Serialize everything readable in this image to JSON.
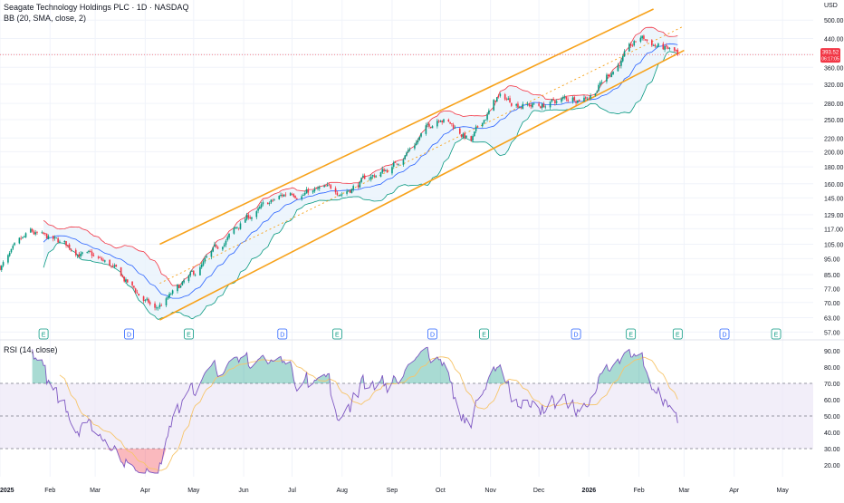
{
  "header": {
    "symbol_line": "Seagate Technology Holdings PLC · 1D · NASDAQ",
    "bb_legend": "BB (20, SMA, close, 2)",
    "rsi_legend": "RSI (14, close)",
    "currency": "USD"
  },
  "price_badge": {
    "price": "393.52",
    "countdown": "06:17:05",
    "color": "#f23645"
  },
  "colors": {
    "up": "#089981",
    "down": "#f23645",
    "channel": "#f7a21b",
    "bb_upper": "#f23645",
    "bb_lower": "#089981",
    "bb_basis": "#2962ff",
    "bb_fill": "#e8f2fb",
    "rsi_line": "#7e57c2",
    "rsi_ma": "#f7c56b",
    "rsi_band": "#ede7f6"
  },
  "chart_data": [
    {
      "type": "candlestick",
      "scale": "log",
      "ylim": [
        55,
        540
      ],
      "price_axis_ticks": [
        "500.00",
        "440.00",
        "393.52",
        "360.00",
        "320.00",
        "280.00",
        "250.00",
        "220.00",
        "200.00",
        "180.00",
        "160.00",
        "145.00",
        "129.00",
        "117.00",
        "105.00",
        "95.00",
        "85.00",
        "77.00",
        "70.00",
        "63.00",
        "57.00"
      ],
      "time_axis_labels": [
        "2025",
        "Feb",
        "Mar",
        "Apr",
        "May",
        "Jun",
        "Jul",
        "Aug",
        "Sep",
        "Oct",
        "Nov",
        "Dec",
        "2026",
        "Feb",
        "Mar",
        "Apr",
        "May"
      ],
      "price_path_monthly": [
        {
          "date": "2025-01-01",
          "close": 90
        },
        {
          "date": "2025-01-20",
          "close": 112
        },
        {
          "date": "2025-02-15",
          "close": 102
        },
        {
          "date": "2025-03-10",
          "close": 90
        },
        {
          "date": "2025-04-07",
          "close": 66
        },
        {
          "date": "2025-05-01",
          "close": 84
        },
        {
          "date": "2025-06-02",
          "close": 125
        },
        {
          "date": "2025-07-01",
          "close": 152
        },
        {
          "date": "2025-08-01",
          "close": 152
        },
        {
          "date": "2025-09-01",
          "close": 180
        },
        {
          "date": "2025-10-01",
          "close": 260
        },
        {
          "date": "2025-10-20",
          "close": 215
        },
        {
          "date": "2025-11-05",
          "close": 290
        },
        {
          "date": "2025-12-01",
          "close": 275
        },
        {
          "date": "2026-01-02",
          "close": 300
        },
        {
          "date": "2026-02-02",
          "close": 440
        },
        {
          "date": "2026-02-25",
          "close": 393.52
        }
      ],
      "last_price": 393.52,
      "indicators": [
        {
          "name": "BB (20, SMA, close, 2)",
          "length": 20,
          "mult": 2
        }
      ],
      "annotations": {
        "event_markers": [
          {
            "label": "E",
            "date": "2025-01-28"
          },
          {
            "label": "D",
            "date": "2025-03-22"
          },
          {
            "label": "E",
            "date": "2025-04-28"
          },
          {
            "label": "D",
            "date": "2025-06-25"
          },
          {
            "label": "E",
            "date": "2025-07-29"
          },
          {
            "label": "D",
            "date": "2025-09-26"
          },
          {
            "label": "E",
            "date": "2025-10-28"
          },
          {
            "label": "D",
            "date": "2025-12-24"
          },
          {
            "label": "E",
            "date": "2026-01-27"
          },
          {
            "label": "E",
            "date": "2026-02-25"
          },
          {
            "label": "D",
            "date": "2026-03-26"
          },
          {
            "label": "E",
            "date": "2026-04-27"
          }
        ],
        "trend_channel": {
          "color": "#f7a21b",
          "upper": [
            {
              "date": "2025-04-10",
              "price": 105
            },
            {
              "date": "2026-02-10",
              "price": 540
            }
          ],
          "lower": [
            {
              "date": "2025-04-10",
              "price": 62
            },
            {
              "date": "2026-03-01",
              "price": 405
            }
          ],
          "median": [
            {
              "date": "2025-04-10",
              "price": 80
            },
            {
              "date": "2026-03-01",
              "price": 480
            }
          ]
        }
      }
    },
    {
      "type": "line",
      "title": "RSI (14, close)",
      "ylim": [
        15,
        95
      ],
      "yticks": [
        90,
        80,
        70,
        60,
        50,
        40,
        30,
        20
      ],
      "tick_labels": [
        "90.00",
        "80.00",
        "70.00",
        "60.00",
        "50.00",
        "40.00",
        "30.00",
        "20.00"
      ],
      "levels": [
        {
          "value": 70,
          "label": "70.00"
        },
        {
          "value": 50,
          "label": "50.00"
        },
        {
          "value": 30,
          "label": "30.00"
        }
      ],
      "series": [
        {
          "values_key": "rsi",
          "length": 14
        },
        {
          "values_key": "rsi_ma",
          "length": 14
        }
      ]
    }
  ]
}
